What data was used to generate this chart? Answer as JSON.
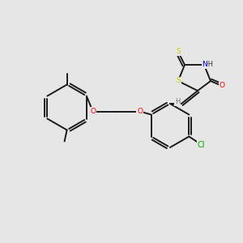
{
  "bg_color": "#e6e6e6",
  "bond_color": "#1a1a1a",
  "atom_colors": {
    "S": "#cccc00",
    "N": "#0000ee",
    "O": "#ff0000",
    "Cl": "#00aa00",
    "H_gray": "#777777",
    "C": "#1a1a1a"
  },
  "font_size_atom": 6.5,
  "lw": 1.4
}
